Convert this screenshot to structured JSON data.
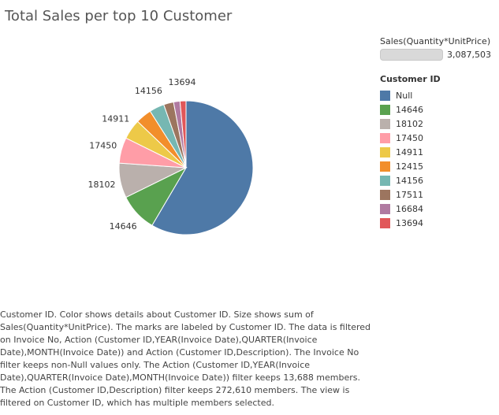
{
  "chart_data": {
    "type": "pie",
    "title": "Total Sales per top 10 Customer",
    "size_legend": {
      "title": "Sales(Quantity*UnitPrice)",
      "value_label": "3,087,503"
    },
    "color_legend_title": "Customer ID",
    "slices": [
      {
        "label": "Null",
        "value": 0.585,
        "color": "#4E79A7",
        "show_label": false
      },
      {
        "label": "14646",
        "value": 0.0925,
        "color": "#59A14F",
        "show_label": true
      },
      {
        "label": "18102",
        "value": 0.084,
        "color": "#BAB0AC",
        "show_label": true
      },
      {
        "label": "17450",
        "value": 0.062,
        "color": "#FF9DA7",
        "show_label": true
      },
      {
        "label": "14911",
        "value": 0.0485,
        "color": "#EDC948",
        "show_label": true
      },
      {
        "label": "12415",
        "value": 0.0385,
        "color": "#F28E2B",
        "show_label": false
      },
      {
        "label": "14156",
        "value": 0.036,
        "color": "#76B7B2",
        "show_label": true
      },
      {
        "label": "17511",
        "value": 0.024,
        "color": "#9C755F",
        "show_label": false
      },
      {
        "label": "16684",
        "value": 0.0155,
        "color": "#B07AA1",
        "show_label": false
      },
      {
        "label": "13694",
        "value": 0.0145,
        "color": "#E15759",
        "show_label": true
      }
    ]
  },
  "caption": "Customer ID.  Color shows details about Customer ID.  Size shows sum of Sales(Quantity*UnitPrice).  The marks are labeled by Customer ID. The data is filtered on Invoice No, Action (Customer ID,YEAR(Invoice Date),QUARTER(Invoice Date),MONTH(Invoice Date)) and Action (Customer ID,Description). The Invoice No filter keeps non-Null values only. The Action (Customer ID,YEAR(Invoice Date),QUARTER(Invoice Date),MONTH(Invoice Date)) filter keeps 13,688 members. The Action (Customer ID,Description) filter keeps 272,610 members. The view is filtered on Customer ID, which has multiple members selected."
}
